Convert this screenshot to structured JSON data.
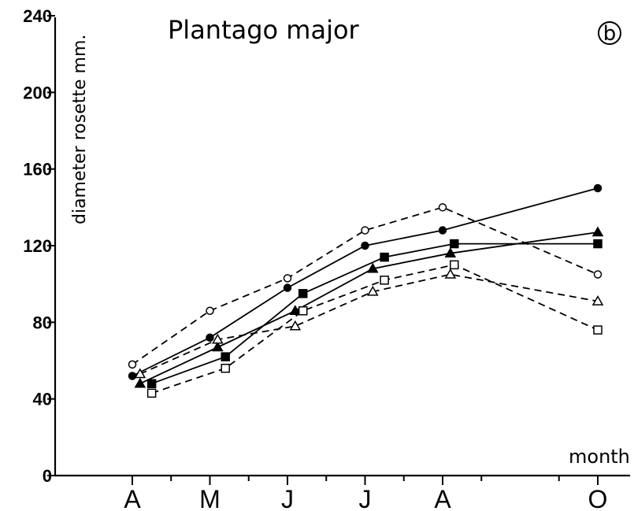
{
  "chart_data": {
    "type": "line",
    "title": "Plantago major",
    "panel_label": "b",
    "ylabel": "diameter rosette mm.",
    "xlabel": "month",
    "ylim": [
      0,
      240
    ],
    "yticks": [
      0,
      40,
      80,
      120,
      160,
      200,
      240
    ],
    "x_categories": [
      "A",
      "M",
      "J",
      "J",
      "A",
      "O"
    ],
    "grid": false,
    "series": [
      {
        "marker": "filled-circle",
        "line": "solid",
        "points": [
          [
            0.0,
            52
          ],
          [
            1.0,
            72
          ],
          [
            2.0,
            98
          ],
          [
            3.0,
            120
          ],
          [
            4.0,
            128
          ],
          [
            6.0,
            150
          ]
        ]
      },
      {
        "marker": "filled-triangle",
        "line": "solid",
        "points": [
          [
            0.1,
            48
          ],
          [
            1.1,
            67
          ],
          [
            2.1,
            86
          ],
          [
            3.1,
            108
          ],
          [
            4.1,
            116
          ],
          [
            6.0,
            127
          ]
        ]
      },
      {
        "marker": "filled-square",
        "line": "solid",
        "points": [
          [
            0.25,
            48
          ],
          [
            1.2,
            62
          ],
          [
            2.2,
            95
          ],
          [
            3.25,
            114
          ],
          [
            4.15,
            121
          ],
          [
            6.0,
            121
          ]
        ]
      },
      {
        "marker": "open-circle",
        "line": "dashed",
        "points": [
          [
            0.0,
            58
          ],
          [
            1.0,
            86
          ],
          [
            2.0,
            103
          ],
          [
            3.0,
            128
          ],
          [
            4.0,
            140
          ],
          [
            6.0,
            105
          ]
        ]
      },
      {
        "marker": "open-triangle",
        "line": "dashed",
        "points": [
          [
            0.1,
            53
          ],
          [
            1.1,
            71
          ],
          [
            2.1,
            78
          ],
          [
            3.1,
            96
          ],
          [
            4.1,
            105
          ],
          [
            6.0,
            91
          ]
        ]
      },
      {
        "marker": "open-square",
        "line": "dashed",
        "points": [
          [
            0.25,
            43
          ],
          [
            1.2,
            56
          ],
          [
            2.2,
            86
          ],
          [
            3.25,
            102
          ],
          [
            4.15,
            110
          ],
          [
            6.0,
            76
          ]
        ]
      }
    ]
  }
}
